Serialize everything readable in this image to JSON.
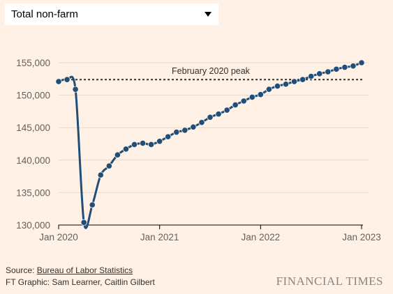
{
  "selector": {
    "value": "Total non-farm"
  },
  "chart_data": {
    "type": "line",
    "x_labels": [
      "Jan 2020",
      "Jan 2021",
      "Jan 2022",
      "Jan 2023"
    ],
    "xlim": [
      "2020-01",
      "2023-01"
    ],
    "ylim": [
      130000,
      155000
    ],
    "y_ticks": [
      130000,
      135000,
      140000,
      145000,
      150000,
      155000
    ],
    "y_tick_labels": [
      "130,000",
      "135,000",
      "140,000",
      "145,000",
      "150,000",
      "155,000"
    ],
    "reference_line": {
      "label": "February 2020 peak",
      "value": 152400
    },
    "series": [
      {
        "color": "#1f4e79",
        "x": [
          "2020-01",
          "2020-02",
          "2020-03",
          "2020-04",
          "2020-05",
          "2020-06",
          "2020-07",
          "2020-08",
          "2020-09",
          "2020-10",
          "2020-11",
          "2020-12",
          "2021-01",
          "2021-02",
          "2021-03",
          "2021-04",
          "2021-05",
          "2021-06",
          "2021-07",
          "2021-08",
          "2021-09",
          "2021-10",
          "2021-11",
          "2021-12",
          "2022-01",
          "2022-02",
          "2022-03",
          "2022-04",
          "2022-05",
          "2022-06",
          "2022-07",
          "2022-08",
          "2022-09",
          "2022-10",
          "2022-11",
          "2022-12",
          "2023-01"
        ],
        "values": [
          152100,
          152400,
          150900,
          130400,
          133100,
          137700,
          139100,
          140800,
          141700,
          142400,
          142600,
          142400,
          142900,
          143600,
          144300,
          144600,
          145100,
          145800,
          146600,
          147100,
          147700,
          148500,
          149100,
          149700,
          150100,
          150900,
          151400,
          151700,
          152100,
          152400,
          152900,
          153300,
          153600,
          154000,
          154300,
          154500,
          155000
        ]
      }
    ],
    "xlabel": "",
    "ylabel": ""
  },
  "footer": {
    "source_prefix": "Source: ",
    "source_link": "Bureau of Labor Statistics",
    "credit": "FT Graphic: Sam Learner, Caitlin Gilbert",
    "brand": "FINANCIAL TIMES"
  }
}
